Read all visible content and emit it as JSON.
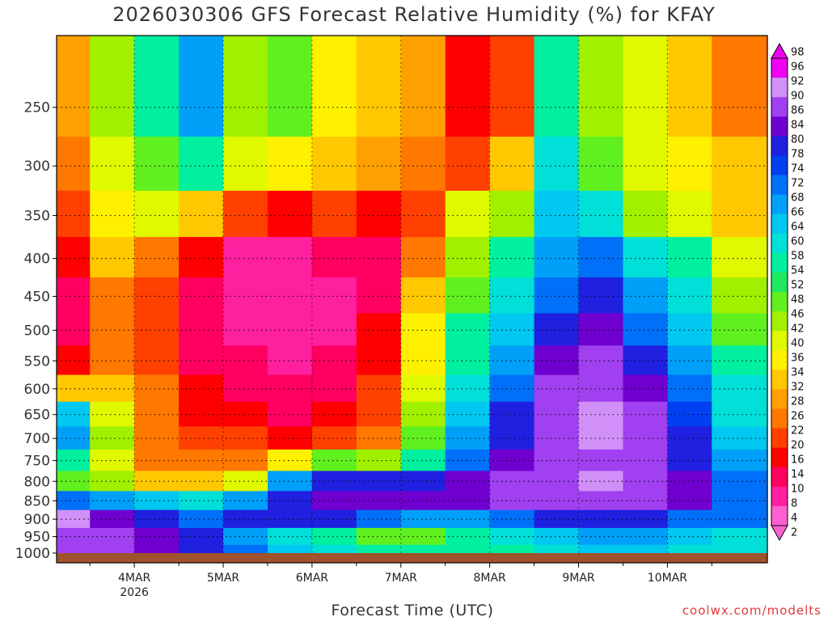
{
  "header": {
    "title": "2026030306 GFS Forecast Relative Humidity (%) for KFAY"
  },
  "footer": {
    "xlabel": "Forecast Time (UTC)",
    "credit": "coolwx.com/modelts"
  },
  "chart_data": {
    "type": "heatmap",
    "title": "2026030306 GFS Forecast Relative Humidity (%) for KFAY",
    "xlabel": "Forecast Time (UTC)",
    "ylabel": "",
    "x_ticks": [
      {
        "label": "4MAR",
        "sub": "2026"
      },
      {
        "label": "5MAR",
        "sub": ""
      },
      {
        "label": "6MAR",
        "sub": ""
      },
      {
        "label": "7MAR",
        "sub": ""
      },
      {
        "label": "8MAR",
        "sub": ""
      },
      {
        "label": "9MAR",
        "sub": ""
      },
      {
        "label": "10MAR",
        "sub": ""
      }
    ],
    "x_range_hours": [
      -21,
      171
    ],
    "y_ticks": [
      250,
      300,
      350,
      400,
      450,
      500,
      550,
      600,
      650,
      700,
      750,
      800,
      850,
      900,
      950,
      1000
    ],
    "y_range": [
      200,
      1000
    ],
    "y_scale": "log",
    "grid": true,
    "colorbar_ticks": [
      98,
      96,
      92,
      90,
      86,
      84,
      80,
      78,
      74,
      72,
      68,
      66,
      64,
      60,
      58,
      54,
      52,
      48,
      46,
      42,
      40,
      36,
      34,
      32,
      28,
      26,
      22,
      20,
      16,
      14,
      10,
      8,
      4,
      2
    ],
    "colorbar_colors": [
      "#f000f0",
      "#d090f8",
      "#a040f0",
      "#7000d0",
      "#2020e0",
      "#0040f0",
      "#0070f8",
      "#00a0f8",
      "#00c8f0",
      "#00e0d8",
      "#00f0a0",
      "#20e860",
      "#60f020",
      "#a0f000",
      "#e0f800",
      "#fff000",
      "#ffc800",
      "#ffa000",
      "#ff7800",
      "#ff4000",
      "#ff0000",
      "#ff0060",
      "#ff20a0",
      "#ff60d0"
    ],
    "colorbar_range": [
      0,
      100
    ],
    "rh_grid": {
      "times_hours": [
        -18,
        -6,
        6,
        18,
        30,
        42,
        54,
        66,
        78,
        90,
        102,
        114,
        126,
        138,
        150,
        162
      ],
      "levels_hpa": [
        250,
        300,
        350,
        400,
        450,
        500,
        550,
        600,
        650,
        700,
        750,
        800,
        850,
        900,
        950,
        1000
      ],
      "values": [
        [
          28,
          45,
          55,
          70,
          45,
          50,
          35,
          30,
          28,
          15,
          20,
          55,
          45,
          40,
          30,
          25
        ],
        [
          25,
          40,
          50,
          55,
          40,
          35,
          30,
          28,
          25,
          20,
          30,
          60,
          50,
          40,
          35,
          30
        ],
        [
          20,
          35,
          40,
          30,
          20,
          15,
          20,
          15,
          20,
          40,
          45,
          65,
          60,
          45,
          40,
          30
        ],
        [
          15,
          30,
          25,
          15,
          8,
          8,
          10,
          10,
          25,
          45,
          55,
          70,
          75,
          60,
          55,
          40
        ],
        [
          12,
          25,
          20,
          10,
          8,
          6,
          8,
          12,
          30,
          50,
          60,
          75,
          80,
          70,
          60,
          45
        ],
        [
          10,
          25,
          20,
          10,
          8,
          6,
          8,
          15,
          35,
          55,
          65,
          80,
          85,
          75,
          65,
          50
        ],
        [
          15,
          25,
          20,
          12,
          10,
          8,
          10,
          15,
          35,
          55,
          70,
          85,
          88,
          80,
          70,
          55
        ],
        [
          30,
          30,
          25,
          15,
          12,
          10,
          12,
          20,
          40,
          60,
          75,
          88,
          90,
          85,
          75,
          60
        ],
        [
          65,
          40,
          25,
          15,
          15,
          12,
          15,
          20,
          45,
          65,
          80,
          88,
          92,
          88,
          78,
          62
        ],
        [
          70,
          45,
          25,
          20,
          18,
          15,
          20,
          25,
          50,
          70,
          82,
          88,
          92,
          88,
          80,
          65
        ],
        [
          55,
          40,
          25,
          22,
          25,
          35,
          50,
          45,
          55,
          75,
          85,
          88,
          90,
          88,
          82,
          68
        ],
        [
          50,
          45,
          30,
          30,
          40,
          70,
          80,
          80,
          80,
          85,
          88,
          90,
          92,
          90,
          85,
          72
        ],
        [
          75,
          70,
          65,
          60,
          70,
          82,
          85,
          85,
          85,
          85,
          88,
          90,
          90,
          88,
          85,
          75
        ],
        [
          92,
          85,
          80,
          75,
          80,
          82,
          80,
          75,
          70,
          70,
          75,
          80,
          82,
          80,
          75,
          72
        ],
        [
          90,
          88,
          85,
          80,
          70,
          60,
          55,
          50,
          50,
          55,
          60,
          65,
          70,
          70,
          65,
          62
        ],
        [
          88,
          88,
          85,
          80,
          75,
          65,
          60,
          55,
          55,
          55,
          58,
          62,
          65,
          65,
          62,
          60
        ]
      ]
    }
  }
}
